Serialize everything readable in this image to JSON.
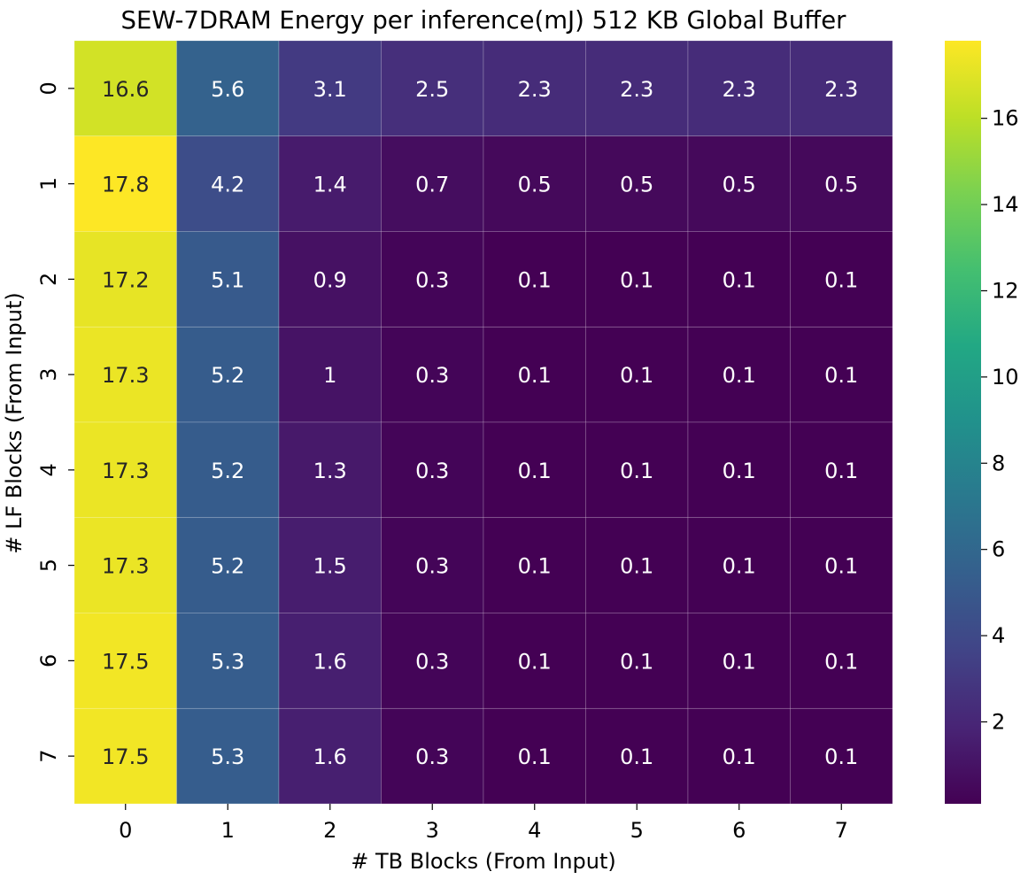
{
  "chart_data": {
    "type": "heatmap",
    "title": "SEW-7DRAM Energy per inference(mJ) 512 KB Global Buffer",
    "xlabel": "# TB Blocks (From Input)",
    "ylabel": "# LF Blocks (From Input)",
    "x_categories": [
      "0",
      "1",
      "2",
      "3",
      "4",
      "5",
      "6",
      "7"
    ],
    "y_categories": [
      "0",
      "1",
      "2",
      "3",
      "4",
      "5",
      "6",
      "7"
    ],
    "values": [
      [
        16.6,
        5.6,
        3.1,
        2.5,
        2.3,
        2.3,
        2.3,
        2.3
      ],
      [
        17.8,
        4.2,
        1.4,
        0.7,
        0.5,
        0.5,
        0.5,
        0.5
      ],
      [
        17.2,
        5.1,
        0.9,
        0.3,
        0.1,
        0.1,
        0.1,
        0.1
      ],
      [
        17.3,
        5.2,
        1,
        0.3,
        0.1,
        0.1,
        0.1,
        0.1
      ],
      [
        17.3,
        5.2,
        1.3,
        0.3,
        0.1,
        0.1,
        0.1,
        0.1
      ],
      [
        17.3,
        5.2,
        1.5,
        0.3,
        0.1,
        0.1,
        0.1,
        0.1
      ],
      [
        17.5,
        5.3,
        1.6,
        0.3,
        0.1,
        0.1,
        0.1,
        0.1
      ],
      [
        17.5,
        5.3,
        1.6,
        0.3,
        0.1,
        0.1,
        0.1,
        0.1
      ]
    ],
    "colormap": "viridis",
    "color_range": [
      0.1,
      17.8
    ],
    "colorbar_ticks": [
      2,
      4,
      6,
      8,
      10,
      12,
      14,
      16
    ],
    "annotations": true,
    "grid": false,
    "colorbar_position": "right"
  }
}
